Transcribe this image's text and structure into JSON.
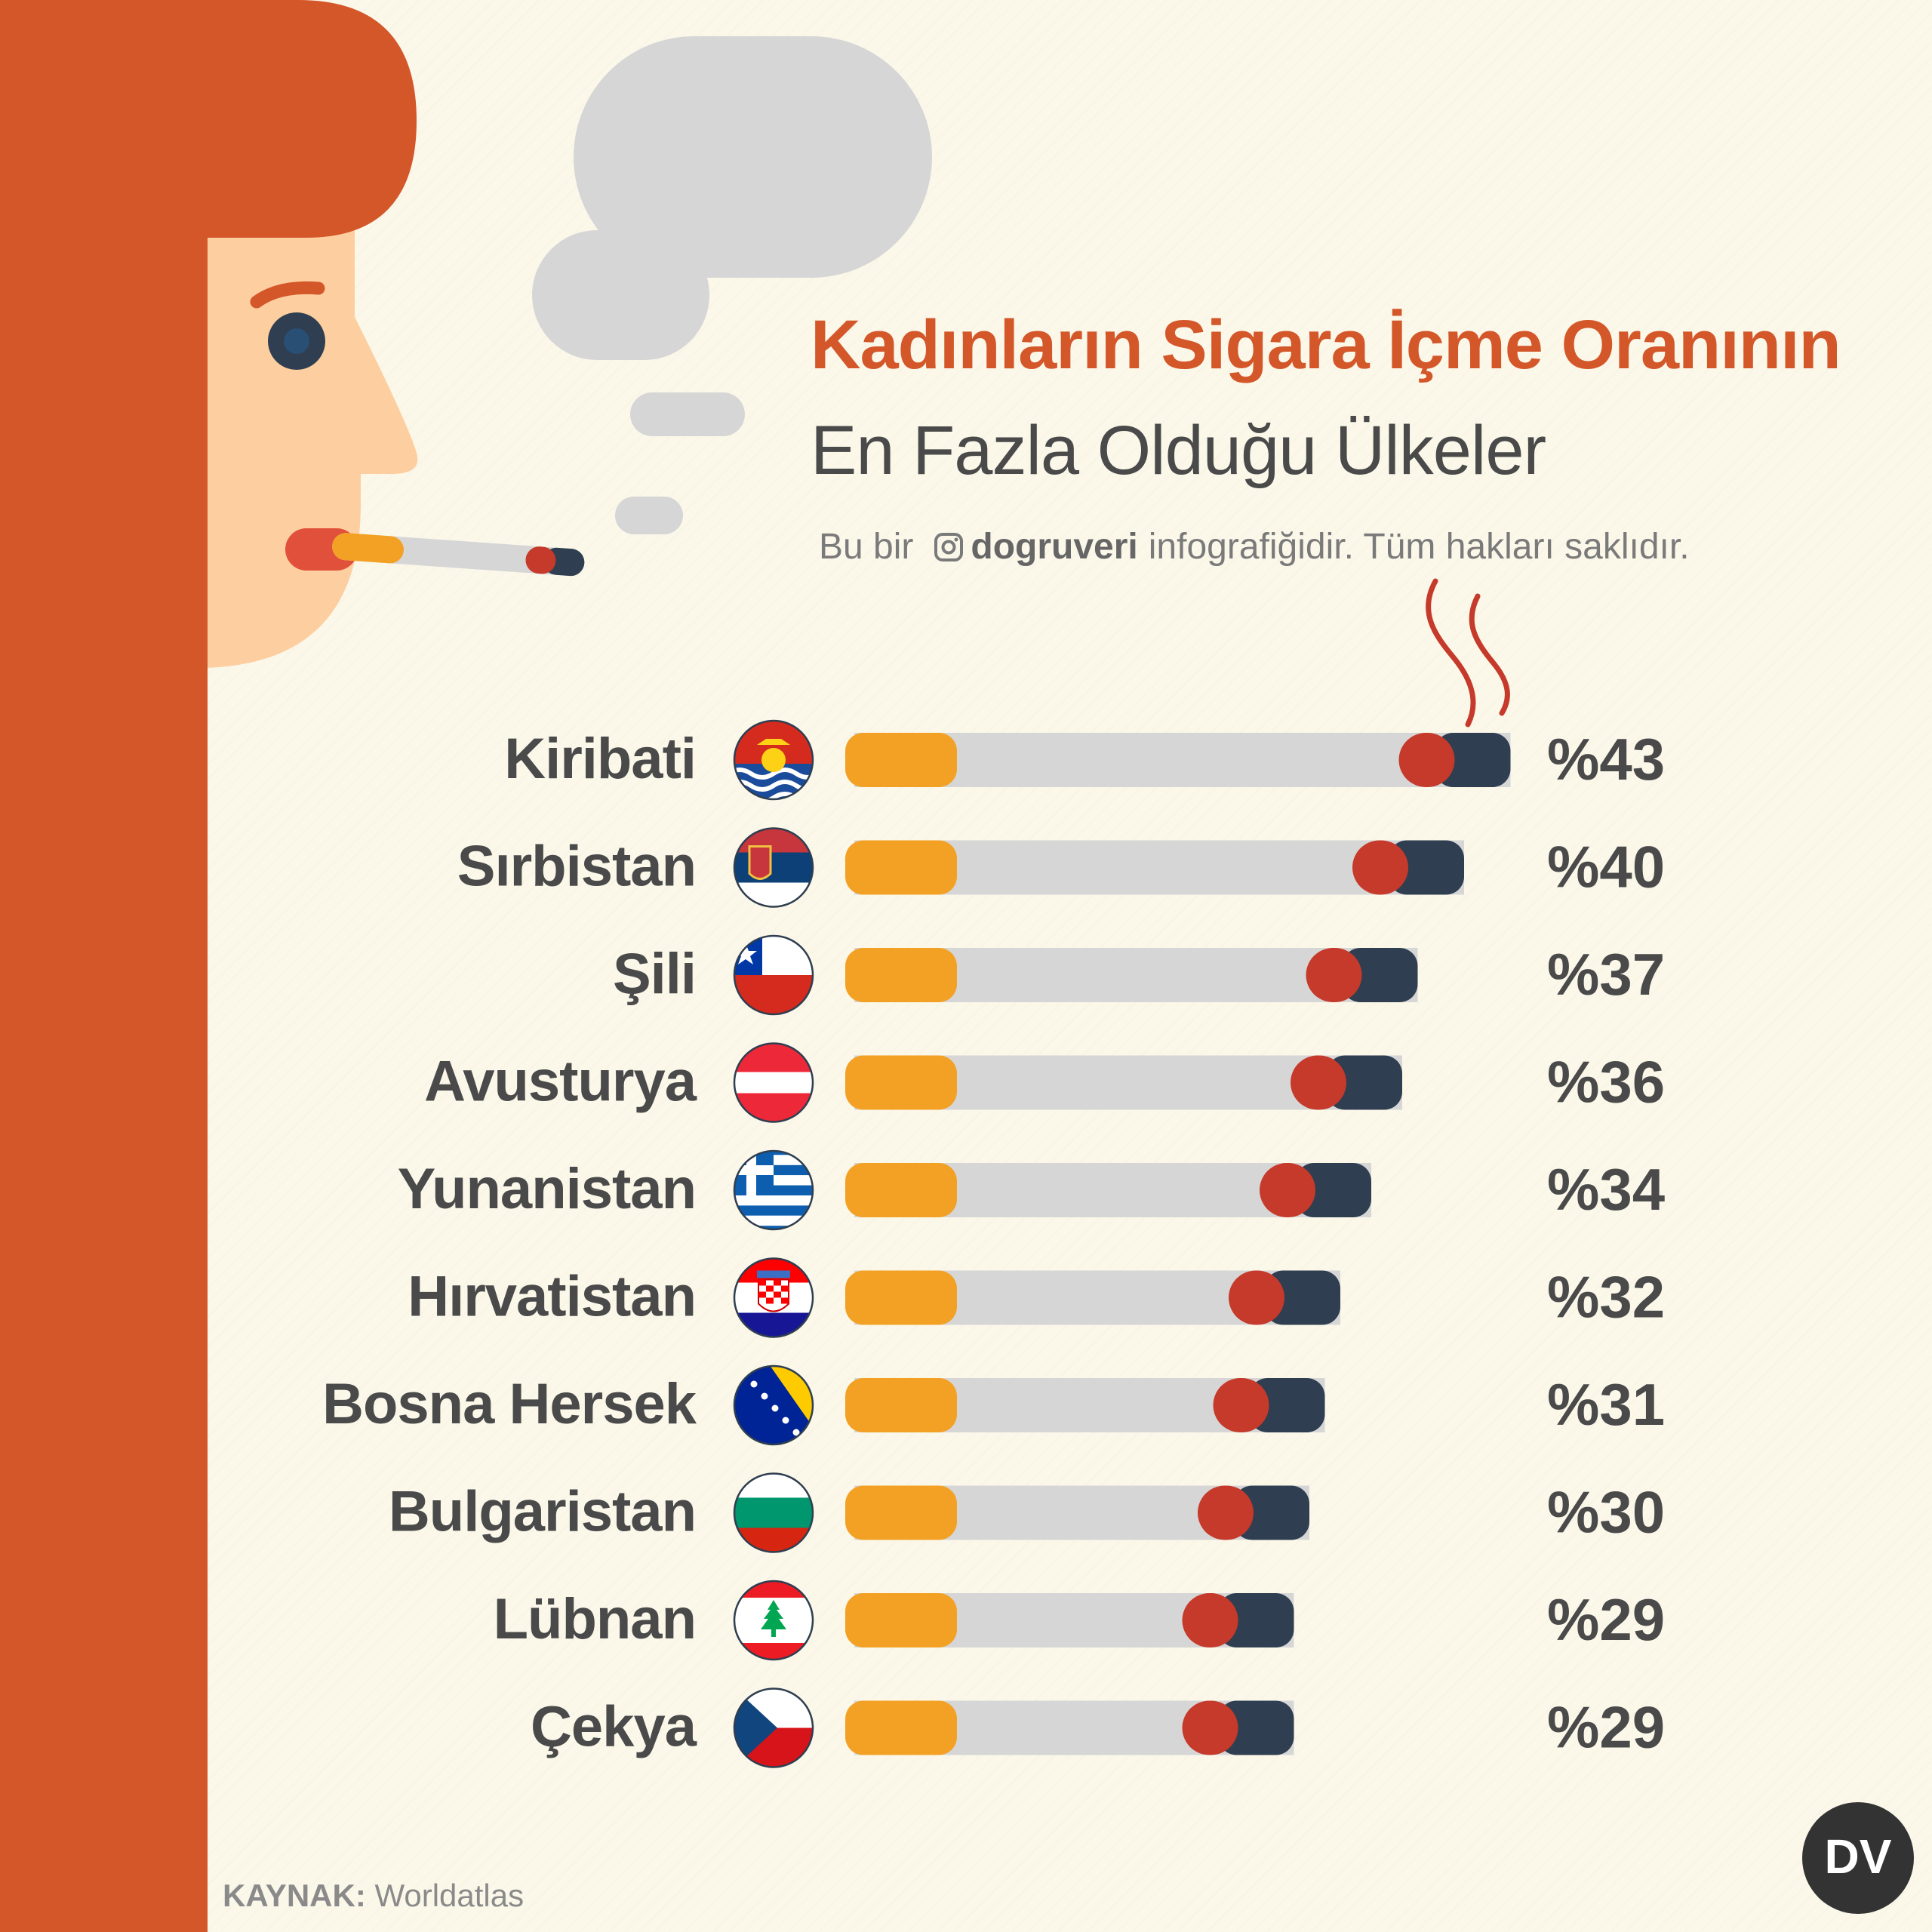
{
  "title_line1": "Kadınların Sigara İçme Oranının",
  "title_line2": "En Fazla Olduğu Ülkeler",
  "credit": {
    "prefix": "Bu bir",
    "icon": "instagram-icon",
    "brand": "dogruveri",
    "suffix": "infografiğidir. Tüm hakları saklıdır."
  },
  "source": {
    "label": "KAYNAK:",
    "value": "Worldatlas"
  },
  "logo_text": "DV",
  "colors": {
    "background": "#fbf8ea",
    "hair": "#d4572a",
    "skin": "#fdcfa0",
    "smoke": "#d6d6d6",
    "filter": "#f3a124",
    "ember": "#c53a2a",
    "ash": "#2f3e50",
    "text": "#4a4a4a"
  },
  "chart_data": {
    "type": "bar",
    "categories": [
      "Kiribati",
      "Sırbistan",
      "Şili",
      "Avusturya",
      "Yunanistan",
      "Hırvatistan",
      "Bosna Hersek",
      "Bulgaristan",
      "Lübnan",
      "Çekya"
    ],
    "values": [
      43,
      40,
      37,
      36,
      34,
      32,
      31,
      30,
      29,
      29
    ],
    "value_labels": [
      "%43",
      "%40",
      "%37",
      "%36",
      "%34",
      "%32",
      "%31",
      "%30",
      "%29",
      "%29"
    ],
    "flags": [
      "kiribati-flag-icon",
      "serbia-flag-icon",
      "chile-flag-icon",
      "austria-flag-icon",
      "greece-flag-icon",
      "croatia-flag-icon",
      "bosnia-flag-icon",
      "bulgaria-flag-icon",
      "lebanon-flag-icon",
      "czechia-flag-icon"
    ],
    "orientation": "horizontal",
    "unit": "%"
  }
}
